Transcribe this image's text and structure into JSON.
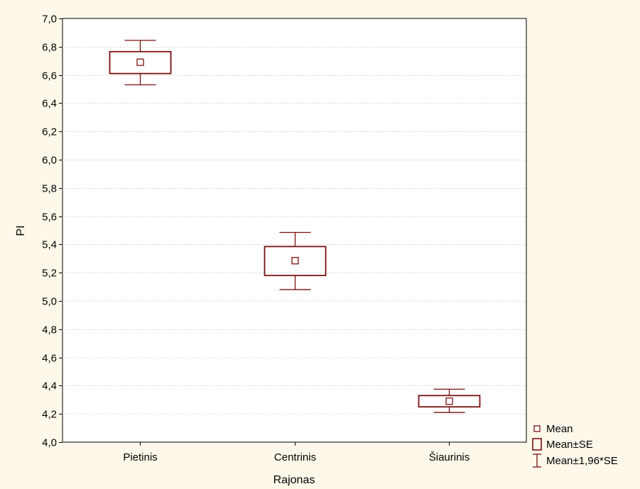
{
  "chart_data": {
    "type": "box",
    "xlabel": "Rajonas",
    "ylabel": "PI",
    "categories": [
      "Pietinis",
      "Centrinis",
      "Šiaurinis"
    ],
    "series": [
      {
        "name": "Mean",
        "values": [
          6.69,
          5.285,
          4.29
        ]
      },
      {
        "name": "Mean±SE",
        "low": [
          6.61,
          5.18,
          4.25
        ],
        "high": [
          6.765,
          5.385,
          4.33
        ]
      },
      {
        "name": "Mean±1,96*SE",
        "low": [
          6.53,
          5.08,
          4.21
        ],
        "high": [
          6.845,
          5.485,
          4.375
        ]
      }
    ],
    "ylim": [
      4.0,
      7.0
    ],
    "yticks": [
      "4,0",
      "4,2",
      "4,4",
      "4,6",
      "4,8",
      "5,0",
      "5,2",
      "5,4",
      "5,6",
      "5,8",
      "6,0",
      "6,2",
      "6,4",
      "6,6",
      "6,8",
      "7,0"
    ],
    "ytick_values": [
      4.0,
      4.2,
      4.4,
      4.6,
      4.8,
      5.0,
      5.2,
      5.4,
      5.6,
      5.8,
      6.0,
      6.2,
      6.4,
      6.6,
      6.8,
      7.0
    ],
    "grid": true,
    "legend_position": "bottom-right",
    "legend": [
      {
        "label": "Mean",
        "symbol": "small-square"
      },
      {
        "label": "Mean±SE",
        "symbol": "box"
      },
      {
        "label": "Mean±1,96*SE",
        "symbol": "whisker"
      }
    ],
    "colors": {
      "series": "#7a1010",
      "background": "#fdf8ea",
      "plot_background": "#ffffff",
      "grid": "#c8c8c8"
    }
  }
}
